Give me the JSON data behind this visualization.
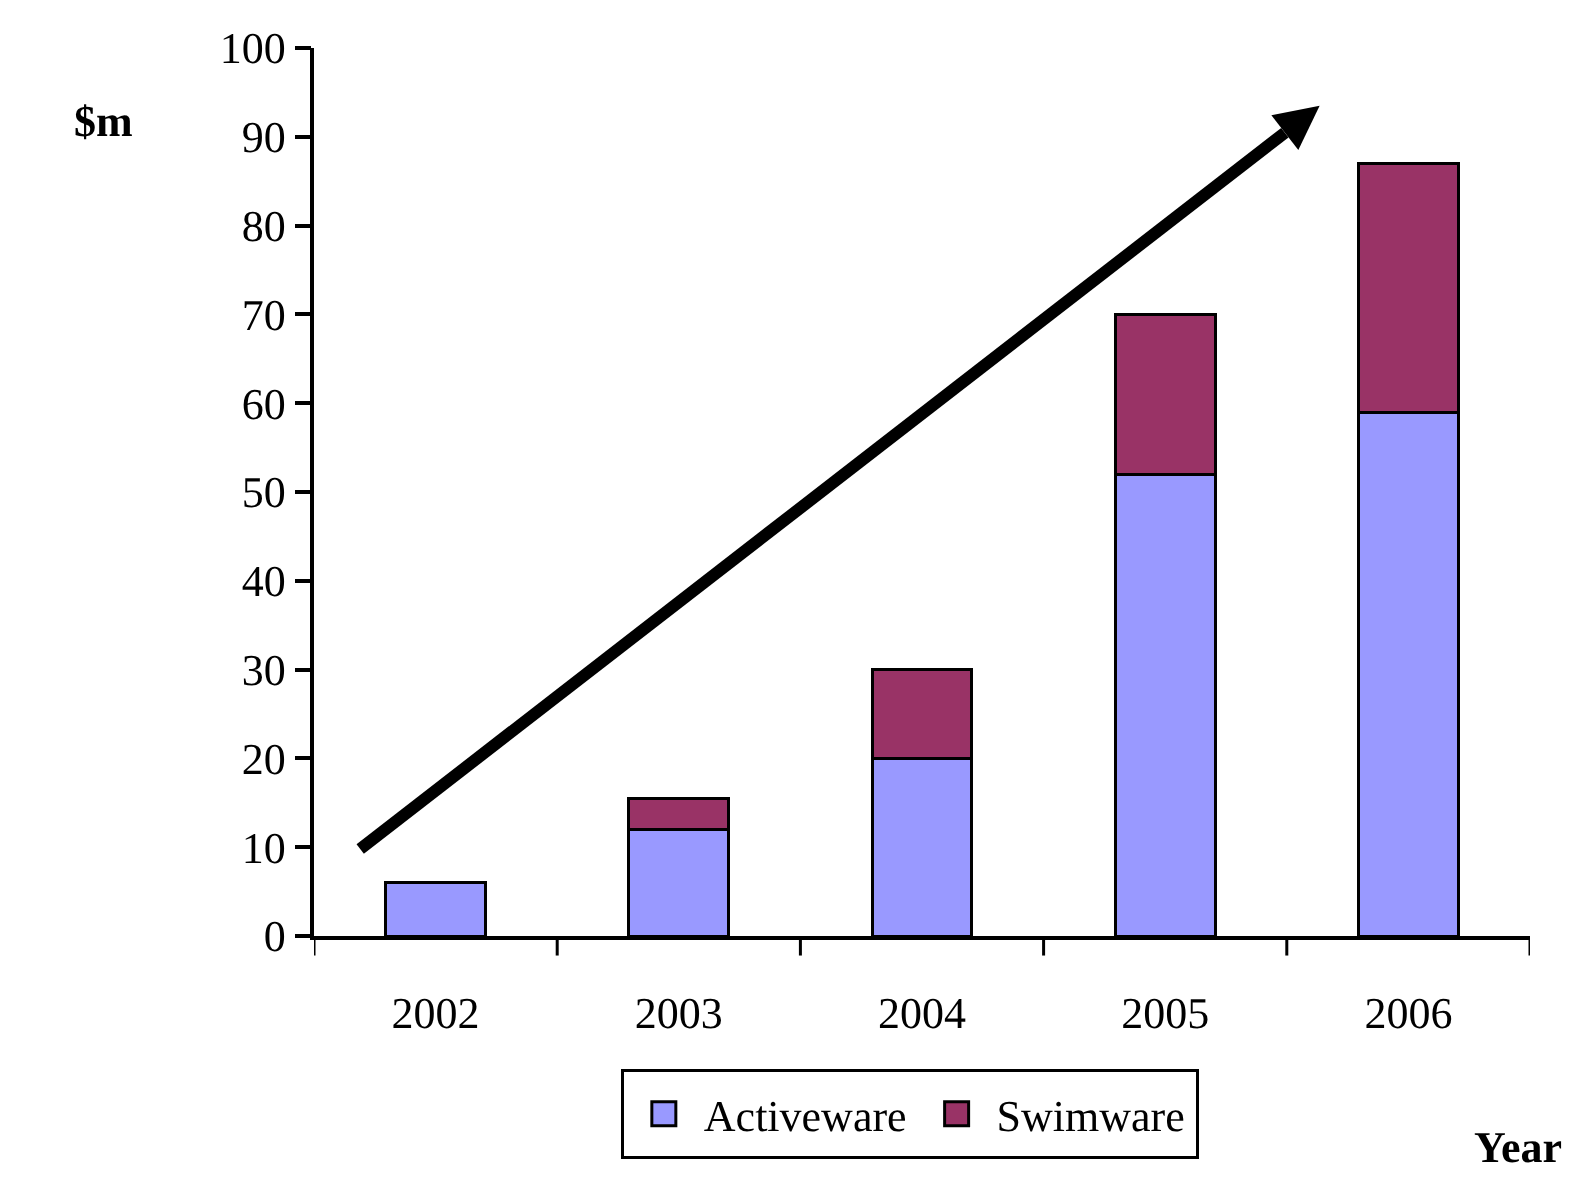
{
  "chart_data": {
    "type": "bar",
    "stacked": true,
    "ylabel": "$m",
    "xlabel": "Year",
    "categories": [
      "2002",
      "2003",
      "2004",
      "2005",
      "2006"
    ],
    "series": [
      {
        "name": "Activeware",
        "color": "#9999ff",
        "values": [
          6,
          12,
          20,
          52,
          59
        ]
      },
      {
        "name": "Swimware",
        "color": "#993366",
        "values": [
          null,
          3.5,
          10,
          18,
          28
        ]
      }
    ],
    "ylim": [
      0,
      100
    ],
    "yticks": [
      0,
      10,
      20,
      30,
      40,
      50,
      60,
      70,
      80,
      90,
      100
    ],
    "legend": "bottom"
  }
}
